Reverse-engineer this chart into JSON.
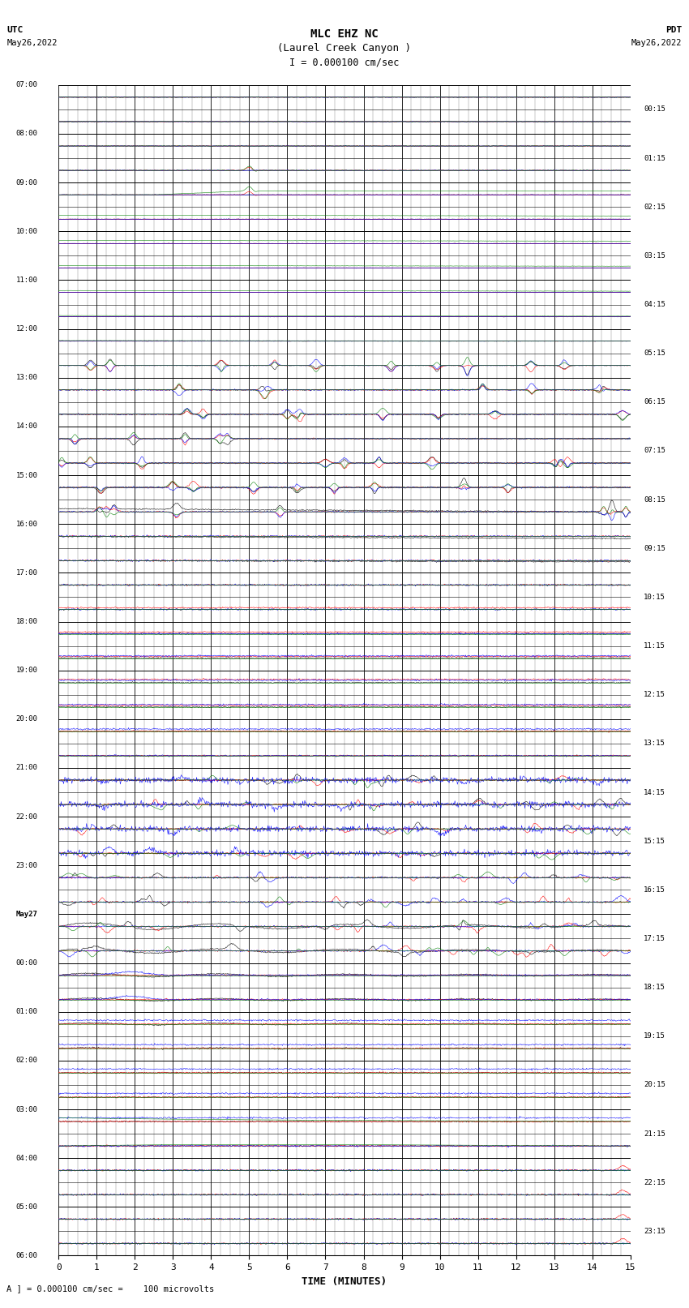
{
  "title_line1": "MLC EHZ NC",
  "title_line2": "(Laurel Creek Canyon )",
  "title_line3": "I = 0.000100 cm/sec",
  "left_label_top": "UTC",
  "left_label_date": "May26,2022",
  "right_label_top": "PDT",
  "right_label_date": "May26,2022",
  "bottom_label": "TIME (MINUTES)",
  "bottom_note": "A ] = 0.000100 cm/sec =    100 microvolts",
  "utc_times": [
    "07:00",
    "",
    "08:00",
    "",
    "09:00",
    "",
    "10:00",
    "",
    "11:00",
    "",
    "12:00",
    "",
    "13:00",
    "",
    "14:00",
    "",
    "15:00",
    "",
    "16:00",
    "",
    "17:00",
    "",
    "18:00",
    "",
    "19:00",
    "",
    "20:00",
    "",
    "21:00",
    "",
    "22:00",
    "",
    "23:00",
    "May27",
    "00:00",
    "",
    "01:00",
    "",
    "02:00",
    "",
    "03:00",
    "",
    "04:00",
    "",
    "05:00",
    "",
    "06:00",
    ""
  ],
  "pdt_times": [
    "00:15",
    "",
    "01:15",
    "",
    "02:15",
    "",
    "03:15",
    "",
    "04:15",
    "",
    "05:15",
    "",
    "06:15",
    "",
    "07:15",
    "",
    "08:15",
    "",
    "09:15",
    "",
    "10:15",
    "",
    "11:15",
    "",
    "12:15",
    "",
    "13:15",
    "",
    "14:15",
    "",
    "15:15",
    "",
    "16:15",
    "",
    "17:15",
    "",
    "18:15",
    "",
    "19:15",
    "",
    "20:15",
    "",
    "21:15",
    "",
    "22:15",
    "",
    "23:15",
    ""
  ],
  "x_ticks": [
    0,
    1,
    2,
    3,
    4,
    5,
    6,
    7,
    8,
    9,
    10,
    11,
    12,
    13,
    14,
    15
  ],
  "figsize": [
    8.5,
    16.13
  ],
  "dpi": 100,
  "bg_color": "#ffffff",
  "trace_colors": [
    "#000000",
    "#ff0000",
    "#0000ff",
    "#008000"
  ],
  "num_rows": 48,
  "subrows": 4
}
